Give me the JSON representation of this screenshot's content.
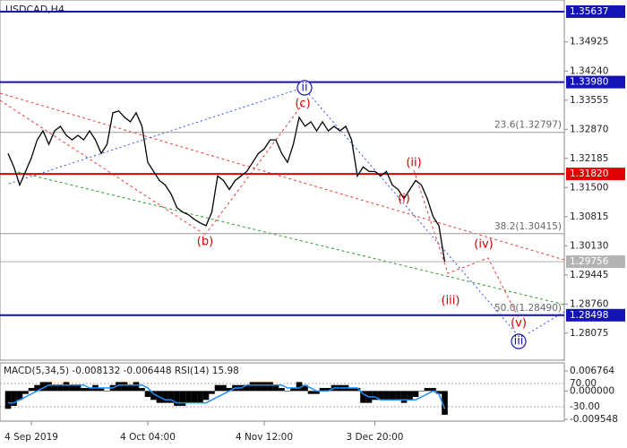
{
  "chart_data": [
    {
      "type": "line",
      "title": "USDCAD,H4",
      "categories": [
        null,
        null,
        null,
        null,
        "4 Sep 2019",
        null,
        null,
        null,
        null,
        null,
        null,
        null,
        null,
        null,
        null,
        null,
        null,
        null,
        null,
        null,
        null,
        null,
        null,
        null,
        "4 Oct 04:00",
        null,
        null,
        null,
        null,
        null,
        null,
        null,
        null,
        null,
        null,
        null,
        null,
        null,
        null,
        null,
        null,
        null,
        null,
        null,
        "4 Nov 12:00",
        null,
        null,
        null,
        null,
        null,
        null,
        null,
        null,
        null,
        null,
        null,
        null,
        null,
        null,
        null,
        null,
        null,
        null,
        "3 Dec 20:00",
        null,
        null,
        null,
        null,
        null,
        null,
        null,
        null,
        null,
        null,
        null,
        null
      ],
      "series": [
        {
          "color": "#000000",
          "values": [
            1.32302,
            1.31984,
            1.31559,
            1.31878,
            1.32196,
            1.32621,
            1.32833,
            1.32515,
            1.32833,
            1.3294,
            1.32727,
            1.32621,
            1.32727,
            1.32621,
            1.32833,
            1.32621,
            1.32302,
            1.32515,
            1.33258,
            1.33301,
            1.33152,
            1.33046,
            1.33258,
            1.3294,
            1.3209,
            1.31878,
            1.31665,
            1.31559,
            1.31347,
            1.31028,
            1.30922,
            1.30858,
            1.30752,
            1.30667,
            1.30603,
            1.30922,
            1.31771,
            1.31665,
            1.31453,
            1.31665,
            1.31771,
            1.31878,
            1.3209,
            1.32302,
            1.32409,
            1.32621,
            1.32621,
            1.32302,
            1.3209,
            1.32515,
            1.33152,
            1.3294,
            1.33046,
            1.32833,
            1.33046,
            1.32833,
            1.3294,
            1.32833,
            1.3294,
            1.32621,
            1.31771,
            1.31984,
            1.31878,
            1.31878,
            1.31771,
            1.31878,
            1.31559,
            1.31453,
            1.3124,
            1.31453,
            1.31665,
            1.31559,
            1.3124,
            1.30816,
            1.30603,
            1.29756
          ]
        }
      ],
      "ylim": [
        1.2744,
        1.3591
      ],
      "yticks": [
        1.34925,
        {
          "value": 1.3424,
          "label": "1.34240"
        },
        1.33555,
        {
          "value": 1.3287,
          "label": "1.32870"
        },
        1.32185,
        {
          "value": 1.315,
          "label": "1.31500"
        },
        1.30815,
        {
          "value": 1.3013,
          "label": "1.30130"
        },
        1.29445,
        {
          "value": 1.2876,
          "label": "1.28760"
        },
        1.28075
      ],
      "levels": [
        {
          "value": 1.35637,
          "color": "#1414b4"
        },
        {
          "value": 1.3398,
          "label": "1.33980",
          "color": "#1414b4"
        },
        {
          "value": 1.3182,
          "label": "1.31820",
          "color": "#e00000"
        },
        {
          "value": 1.29756,
          "color": "#b4b4b4"
        },
        {
          "value": 1.28498,
          "color": "#1414b4"
        }
      ],
      "fib_levels": [
        {
          "value": 1.32797,
          "label": "23.6(1.32797)"
        },
        {
          "value": 1.30415,
          "label": "38.2(1.30415)"
        },
        {
          "value": 1.2849,
          "label": "50.0(1.28490)"
        }
      ],
      "annotations": [
        {
          "text": "(c)",
          "color": "#d00000"
        },
        {
          "text": "(b)",
          "color": "#d00000"
        },
        {
          "text": "(ii)",
          "color": "#d00000"
        },
        {
          "text": "(i)",
          "color": "#d00000"
        },
        {
          "text": "(iv)",
          "color": "#d00000"
        },
        {
          "text": "(iii)",
          "color": "#d00000"
        },
        {
          "text": "(v)",
          "color": "#d00000"
        },
        {
          "text": "ii",
          "color": "#1414b4"
        },
        {
          "text": "iii",
          "color": "#1414b4"
        }
      ]
    },
    {
      "type": "bar",
      "title": "MACD(5,34,5) -0.008132 -0.006448 RSI(14) 15.98",
      "series": [
        {
          "color": "#000000",
          "values": [
            -0.006,
            -0.005,
            -0.003,
            -0.001,
            0.001,
            0.002,
            0.003,
            0.003,
            0.002,
            0.002,
            0.003,
            0.002,
            0.002,
            0.001,
            0.001,
            0.002,
            0.001,
            0,
            0.002,
            0.003,
            0.003,
            0.002,
            0.003,
            0.001,
            -0.002,
            -0.003,
            -0.004,
            -0.004,
            -0.004,
            -0.005,
            -0.005,
            -0.004,
            -0.004,
            -0.004,
            -0.003,
            -0.001,
            0.002,
            0.002,
            0.001,
            0.002,
            0.002,
            0.002,
            0.003,
            0.003,
            0.003,
            0.003,
            0.002,
            0.001,
            0,
            0.001,
            0.003,
            0.002,
            -0.001,
            -0.001,
            0.001,
            0.001,
            0.002,
            0.002,
            0.002,
            0.001,
            0.001,
            -0.004,
            -0.004,
            -0.003,
            -0.003,
            -0.003,
            -0.003,
            -0.003,
            -0.004,
            -0.003,
            -0.002,
            0,
            0.001,
            0.001,
            -0.001,
            -0.008
          ]
        },
        {
          "color": "#1e90ff",
          "values": [
            -0.004,
            -0.004,
            -0.003,
            -0.002,
            -0.001,
            0,
            0.001,
            0.002,
            0.002,
            0.002,
            0.002,
            0.002,
            0.002,
            0.002,
            0.001,
            0.001,
            0.001,
            0.001,
            0.001,
            0.002,
            0.002,
            0.002,
            0.002,
            0.002,
            0.001,
            -0.001,
            -0.002,
            -0.003,
            -0.003,
            -0.004,
            -0.004,
            -0.004,
            -0.004,
            -0.004,
            -0.004,
            -0.003,
            -0.002,
            -0.001,
            0,
            0.001,
            0.001,
            0.002,
            0.002,
            0.002,
            0.002,
            0.002,
            0.002,
            0.002,
            0.001,
            0.001,
            0.001,
            0.002,
            0.001,
            0,
            0,
            0,
            0.001,
            0.001,
            0.001,
            0.001,
            0.001,
            -0.001,
            -0.002,
            -0.002,
            -0.003,
            -0.003,
            -0.003,
            -0.003,
            -0.003,
            -0.003,
            -0.003,
            -0.002,
            -0.001,
            0,
            -0.001,
            -0.006
          ]
        }
      ],
      "ylim": [
        -0.01015,
        0.00946
      ],
      "yticks": [
        0.006764,
        {
          "value": 0,
          "label": "0.000000"
        },
        -0.009548
      ],
      "y2lim": [
        -91.5,
        158.5
      ],
      "y2ticks": [
        {
          "value": 70,
          "label": "70.00"
        },
        {
          "value": -30,
          "label": "-30.00"
        }
      ]
    }
  ]
}
